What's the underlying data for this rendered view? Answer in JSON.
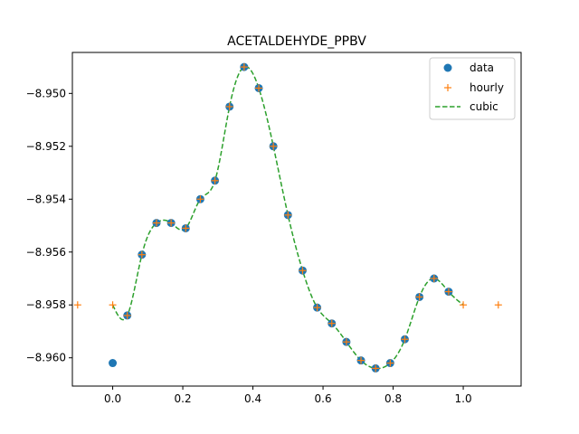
{
  "chart_data": {
    "type": "line",
    "title": "ACETALDEHYDE_PPBV",
    "xlabel": "",
    "ylabel": "",
    "xlim": [
      -0.115,
      1.165
    ],
    "ylim": [
      -8.96107,
      -8.94845
    ],
    "x_ticks": [
      0.0,
      0.2,
      0.4,
      0.6,
      0.8,
      1.0
    ],
    "x_tick_labels": [
      "0.0",
      "0.2",
      "0.4",
      "0.6",
      "0.8",
      "1.0"
    ],
    "y_ticks": [
      -8.96,
      -8.958,
      -8.956,
      -8.954,
      -8.952,
      -8.95
    ],
    "y_tick_labels": [
      "−8.960",
      "−8.958",
      "−8.956",
      "−8.954",
      "−8.952",
      "−8.950"
    ],
    "grid": false,
    "legend_position": "top-right",
    "series": [
      {
        "name": "data",
        "style": "markers-circle",
        "color": "#1f77b4",
        "x": [
          0.0,
          0.0417,
          0.0833,
          0.125,
          0.1667,
          0.2083,
          0.25,
          0.2917,
          0.3333,
          0.375,
          0.4167,
          0.4583,
          0.5,
          0.5417,
          0.5833,
          0.625,
          0.6667,
          0.7083,
          0.75,
          0.7917,
          0.8333,
          0.875,
          0.9167,
          0.9583
        ],
        "y": [
          -8.9602,
          -8.9584,
          -8.9561,
          -8.9549,
          -8.9549,
          -8.9551,
          -8.954,
          -8.9533,
          -8.9505,
          -8.949,
          -8.9498,
          -8.952,
          -8.9546,
          -8.9567,
          -8.9581,
          -8.9587,
          -8.9594,
          -8.9601,
          -8.9604,
          -8.9602,
          -8.9593,
          -8.9577,
          -8.957,
          -8.9575
        ]
      },
      {
        "name": "hourly",
        "style": "markers-plus",
        "color": "#ff7f0e",
        "x": [
          -0.1,
          0.0,
          0.0417,
          0.0833,
          0.125,
          0.1667,
          0.2083,
          0.25,
          0.2917,
          0.3333,
          0.375,
          0.4167,
          0.4583,
          0.5,
          0.5417,
          0.5833,
          0.625,
          0.6667,
          0.7083,
          0.75,
          0.7917,
          0.8333,
          0.875,
          0.9167,
          0.9583,
          1.0,
          1.1
        ],
        "y": [
          -8.958,
          -8.958,
          -8.9584,
          -8.9561,
          -8.9549,
          -8.9549,
          -8.9551,
          -8.954,
          -8.9533,
          -8.9505,
          -8.949,
          -8.9498,
          -8.952,
          -8.9546,
          -8.9567,
          -8.9581,
          -8.9587,
          -8.9594,
          -8.9601,
          -8.9604,
          -8.9602,
          -8.9593,
          -8.9577,
          -8.957,
          -8.9575,
          -8.958,
          -8.958
        ]
      },
      {
        "name": "cubic",
        "style": "dashed-line",
        "color": "#2ca02c",
        "x": [
          0.0,
          0.0417,
          0.0833,
          0.125,
          0.1667,
          0.2083,
          0.25,
          0.2917,
          0.3333,
          0.375,
          0.4167,
          0.4583,
          0.5,
          0.5417,
          0.5833,
          0.625,
          0.6667,
          0.7083,
          0.75,
          0.7917,
          0.8333,
          0.875,
          0.9167,
          0.9583,
          1.0
        ],
        "y": [
          -8.958,
          -8.9584,
          -8.9561,
          -8.9549,
          -8.9549,
          -8.9551,
          -8.954,
          -8.9533,
          -8.9505,
          -8.949,
          -8.9498,
          -8.952,
          -8.9546,
          -8.9567,
          -8.9581,
          -8.9587,
          -8.9594,
          -8.9601,
          -8.9604,
          -8.9602,
          -8.9593,
          -8.9577,
          -8.957,
          -8.9575,
          -8.958
        ]
      }
    ]
  }
}
